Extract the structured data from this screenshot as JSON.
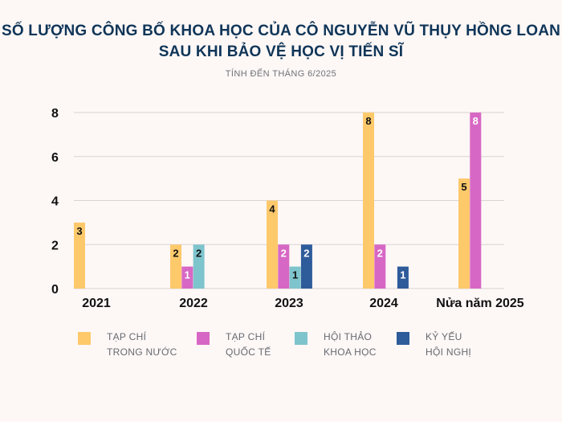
{
  "chart_data": {
    "type": "bar",
    "title_line1": "SỐ LƯỢNG CÔNG BỐ KHOA HỌC CỦA CÔ NGUYỄN VŨ THỤY HỒNG LOAN",
    "title_line2": "SAU KHI BẢO VỆ HỌC VỊ TIẾN SĨ",
    "subtitle": "TÍNH ĐẾN THÁNG 6/2025",
    "categories": [
      "2021",
      "2022",
      "2023",
      "2024",
      "Nửa năm 2025"
    ],
    "ylim": [
      0,
      8
    ],
    "yticks": [
      "0",
      "2",
      "4",
      "6",
      "8"
    ],
    "grid": true,
    "legend_position": "bottom",
    "series": [
      {
        "name_line1": "TẠP CHÍ",
        "name_line2": "TRONG NƯỚC",
        "color": "#fdc96b",
        "values": [
          3,
          2,
          4,
          8,
          5
        ]
      },
      {
        "name_line1": "TẠP CHÍ",
        "name_line2": "QUỐC TẾ",
        "color": "#d767c4",
        "values": [
          null,
          1,
          2,
          2,
          8
        ]
      },
      {
        "name_line1": "HỘI THẢO",
        "name_line2": "KHOA HỌC",
        "color": "#7ec4cd",
        "values": [
          null,
          2,
          1,
          null,
          null
        ]
      },
      {
        "name_line1": "KỶ YẾU",
        "name_line2": "HỘI NGHỊ",
        "color": "#2e5b9a",
        "values": [
          null,
          null,
          2,
          1,
          null
        ]
      }
    ]
  }
}
